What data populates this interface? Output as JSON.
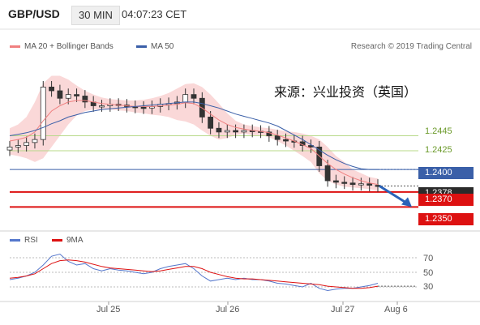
{
  "header": {
    "symbol": "GBP/USD",
    "timeframe": "30 MIN",
    "time": "04:07:23 CET"
  },
  "legend": {
    "item1": "MA 20 + Bollinger Bands",
    "item2": "MA 50",
    "color1": "#f08080",
    "color2": "#3a5fa8"
  },
  "credit": "Research © 2019 Trading Central",
  "source_note": "来源：兴业投资（英国）",
  "levels": {
    "l1": "1.2445",
    "l2": "1.2425",
    "l3": "1.2400",
    "l4": "1.2378",
    "l5": "1.2370",
    "l6": "1.2350"
  },
  "rsi_legend": {
    "item1": "RSI",
    "item2": "9MA",
    "color1": "#5577cc",
    "color2": "#dd1111"
  },
  "rsi_ticks": {
    "t70": "70",
    "t50": "50",
    "t30": "30"
  },
  "xaxis": {
    "d1": "Jul 25",
    "d2": "Jul 26",
    "d3": "Jul 27",
    "d4": "Aug 6"
  },
  "chart_data": [
    {
      "type": "candlestick",
      "ylim": [
        1.2318,
        1.2545
      ],
      "price_levels": [
        1.2445,
        1.2425,
        1.24,
        1.2378,
        1.237,
        1.235
      ],
      "close_series": [
        1.243,
        1.2432,
        1.2436,
        1.244,
        1.251,
        1.2505,
        1.2495,
        1.25,
        1.2498,
        1.249,
        1.2485,
        1.2485,
        1.2487,
        1.2486,
        1.2484,
        1.2483,
        1.2482,
        1.2484,
        1.2487,
        1.2488,
        1.249,
        1.25,
        1.2495,
        1.247,
        1.2455,
        1.245,
        1.2452,
        1.245,
        1.2452,
        1.2451,
        1.245,
        1.2445,
        1.244,
        1.2438,
        1.2437,
        1.2432,
        1.243,
        1.2405,
        1.2385,
        1.2383,
        1.2382,
        1.238,
        1.2381,
        1.2379,
        1.2378
      ],
      "ma20": [
        1.2438,
        1.244,
        1.2443,
        1.245,
        1.2465,
        1.2478,
        1.2485,
        1.249,
        1.2492,
        1.2492,
        1.249,
        1.2488,
        1.2487,
        1.2486,
        1.2485,
        1.2484,
        1.2484,
        1.2484,
        1.2485,
        1.2486,
        1.2487,
        1.2489,
        1.2488,
        1.2482,
        1.2474,
        1.2466,
        1.246,
        1.2456,
        1.2454,
        1.2452,
        1.2451,
        1.2449,
        1.2446,
        1.2442,
        1.2438,
        1.2433,
        1.2428,
        1.2418,
        1.2408,
        1.24,
        1.2394,
        1.2389,
        1.2385,
        1.2382,
        1.238
      ],
      "ma50": [
        1.2445,
        1.2447,
        1.2449,
        1.2452,
        1.2456,
        1.2461,
        1.2465,
        1.247,
        1.2473,
        1.2476,
        1.2478,
        1.248,
        1.2481,
        1.2482,
        1.2483,
        1.2484,
        1.2485,
        1.2486,
        1.2487,
        1.2488,
        1.2489,
        1.249,
        1.249,
        1.2488,
        1.2485,
        1.2482,
        1.2478,
        1.2474,
        1.2471,
        1.2468,
        1.2465,
        1.2462,
        1.2458,
        1.2452,
        1.2446,
        1.244,
        1.2433,
        1.2426,
        1.2419,
        1.2413,
        1.2408,
        1.2404,
        1.2401,
        1.24,
        1.24
      ],
      "bb_upper": [
        1.2455,
        1.246,
        1.247,
        1.249,
        1.2515,
        1.2525,
        1.2525,
        1.252,
        1.2512,
        1.2505,
        1.25,
        1.2496,
        1.2494,
        1.2493,
        1.2492,
        1.2492,
        1.2493,
        1.2495,
        1.2498,
        1.2502,
        1.2508,
        1.2514,
        1.2515,
        1.251,
        1.25,
        1.2488,
        1.2475,
        1.2465,
        1.246,
        1.2458,
        1.2456,
        1.2455,
        1.2453,
        1.2451,
        1.245,
        1.2448,
        1.2445,
        1.244,
        1.243,
        1.2418,
        1.241,
        1.24,
        1.2395,
        1.239,
        1.2388
      ],
      "bb_lower": [
        1.242,
        1.2418,
        1.2415,
        1.241,
        1.2415,
        1.243,
        1.2445,
        1.246,
        1.2472,
        1.2478,
        1.248,
        1.248,
        1.248,
        1.2479,
        1.2478,
        1.2476,
        1.2475,
        1.2473,
        1.2472,
        1.247,
        1.2466,
        1.2464,
        1.246,
        1.2452,
        1.2445,
        1.244,
        1.2442,
        1.2446,
        1.2448,
        1.2446,
        1.2446,
        1.2443,
        1.2438,
        1.2432,
        1.2425,
        1.2418,
        1.241,
        1.2395,
        1.2385,
        1.238,
        1.2377,
        1.2376,
        1.2375,
        1.2374,
        1.2372
      ],
      "forecast_target": 1.235
    },
    {
      "type": "line",
      "ylim": [
        10,
        90
      ],
      "ticks": [
        70,
        50,
        30
      ],
      "series": [
        {
          "name": "RSI",
          "values": [
            40,
            42,
            45,
            50,
            60,
            72,
            75,
            65,
            60,
            62,
            55,
            52,
            55,
            53,
            52,
            50,
            48,
            50,
            55,
            58,
            60,
            62,
            55,
            45,
            38,
            40,
            42,
            40,
            42,
            40,
            40,
            38,
            35,
            34,
            32,
            30,
            35,
            28,
            25,
            27,
            28,
            28,
            30,
            32,
            35
          ]
        },
        {
          "name": "9MA",
          "values": [
            42,
            43,
            45,
            48,
            55,
            62,
            66,
            67,
            66,
            64,
            61,
            58,
            56,
            55,
            54,
            53,
            52,
            51,
            52,
            54,
            56,
            58,
            58,
            55,
            50,
            47,
            44,
            42,
            41,
            41,
            40,
            39,
            38,
            37,
            36,
            35,
            34,
            33,
            31,
            30,
            29,
            28,
            28,
            29,
            31
          ]
        }
      ]
    }
  ]
}
